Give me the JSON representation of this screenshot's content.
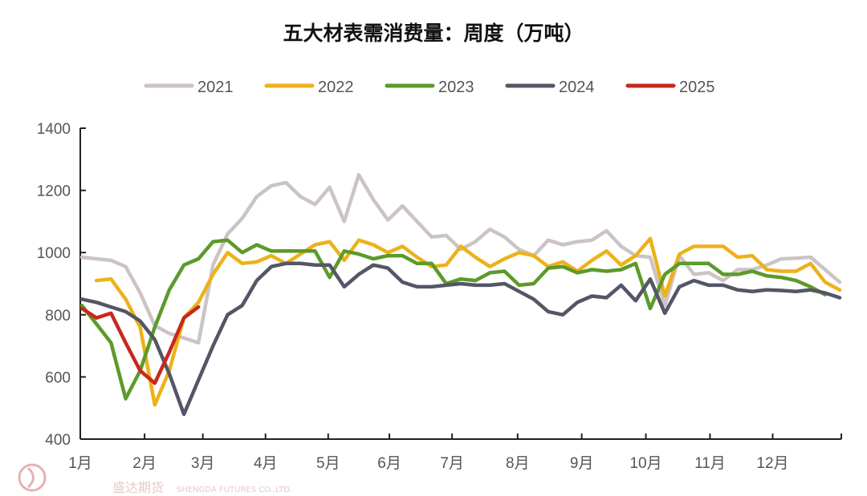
{
  "chart_data": {
    "type": "line",
    "title": "五大材表需消费量：周度（万吨）",
    "xlabel": "",
    "ylabel": "",
    "ylim": [
      400,
      1400
    ],
    "yticks": [
      400,
      600,
      800,
      1000,
      1200,
      1400
    ],
    "xlim": [
      1,
      53
    ],
    "x_unit": "week",
    "month_ticks": [
      {
        "label": "1月",
        "week": 1
      },
      {
        "label": "2月",
        "week": 5.3
      },
      {
        "label": "3月",
        "week": 9.3
      },
      {
        "label": "4月",
        "week": 13.6
      },
      {
        "label": "5月",
        "week": 17.9
      },
      {
        "label": "6月",
        "week": 22.1
      },
      {
        "label": "7月",
        "week": 26.4
      },
      {
        "label": "8月",
        "week": 30.9
      },
      {
        "label": "9月",
        "week": 35.3
      },
      {
        "label": "10月",
        "week": 39.7
      },
      {
        "label": "11月",
        "week": 44.1
      },
      {
        "label": "12月",
        "week": 48.4
      }
    ],
    "grid": false,
    "legend_position": "top",
    "series": [
      {
        "name": "2021",
        "color": "#cbc3c6",
        "start_week": 1,
        "values": [
          985,
          980,
          975,
          955,
          870,
          765,
          740,
          725,
          710,
          960,
          1060,
          1110,
          1180,
          1215,
          1225,
          1180,
          1155,
          1210,
          1100,
          1250,
          1170,
          1105,
          1150,
          1100,
          1050,
          1055,
          1010,
          1035,
          1075,
          1050,
          1010,
          990,
          1040,
          1025,
          1035,
          1040,
          1070,
          1020,
          990,
          985,
          830,
          990,
          930,
          935,
          910,
          945,
          945,
          960,
          980,
          982,
          985,
          945,
          905
        ]
      },
      {
        "name": "2022",
        "color": "#ecb21a",
        "start_week": 2,
        "values": [
          910,
          915,
          850,
          760,
          510,
          620,
          790,
          840,
          930,
          1000,
          965,
          970,
          990,
          965,
          995,
          1025,
          1035,
          975,
          1040,
          1025,
          1000,
          1020,
          985,
          955,
          960,
          1020,
          985,
          955,
          980,
          1000,
          990,
          955,
          970,
          940,
          975,
          1005,
          960,
          990,
          1045,
          860,
          995,
          1020,
          1020,
          1020,
          985,
          990,
          945,
          940,
          940,
          965,
          905,
          880
        ]
      },
      {
        "name": "2023",
        "color": "#5c9a2a",
        "start_week": 1,
        "values": [
          830,
          770,
          710,
          530,
          620,
          760,
          880,
          960,
          980,
          1035,
          1040,
          1000,
          1025,
          1005,
          1005,
          1005,
          1005,
          920,
          1005,
          995,
          980,
          990,
          990,
          965,
          965,
          900,
          915,
          910,
          935,
          940,
          895,
          900,
          950,
          955,
          935,
          945,
          940,
          945,
          965,
          820,
          930,
          965,
          965,
          965,
          930,
          930,
          940,
          925,
          920,
          910,
          890,
          865
        ]
      },
      {
        "name": "2024",
        "color": "#545667",
        "start_week": 1,
        "values": [
          850,
          840,
          825,
          810,
          780,
          720,
          610,
          480,
          590,
          700,
          800,
          830,
          910,
          955,
          965,
          965,
          960,
          960,
          890,
          930,
          960,
          950,
          905,
          890,
          890,
          895,
          900,
          895,
          895,
          900,
          875,
          850,
          810,
          800,
          840,
          860,
          855,
          895,
          845,
          915,
          805,
          890,
          910,
          895,
          895,
          880,
          875,
          880,
          878,
          875,
          880,
          870,
          855
        ]
      },
      {
        "name": "2025",
        "color": "#c8281e",
        "start_week": 1,
        "values": [
          820,
          790,
          805,
          710,
          620,
          580,
          680,
          790,
          825
        ]
      }
    ]
  },
  "watermark": {
    "name": "盛达期货",
    "sub": "SHENGDA FUTURES CO.,LTD."
  }
}
